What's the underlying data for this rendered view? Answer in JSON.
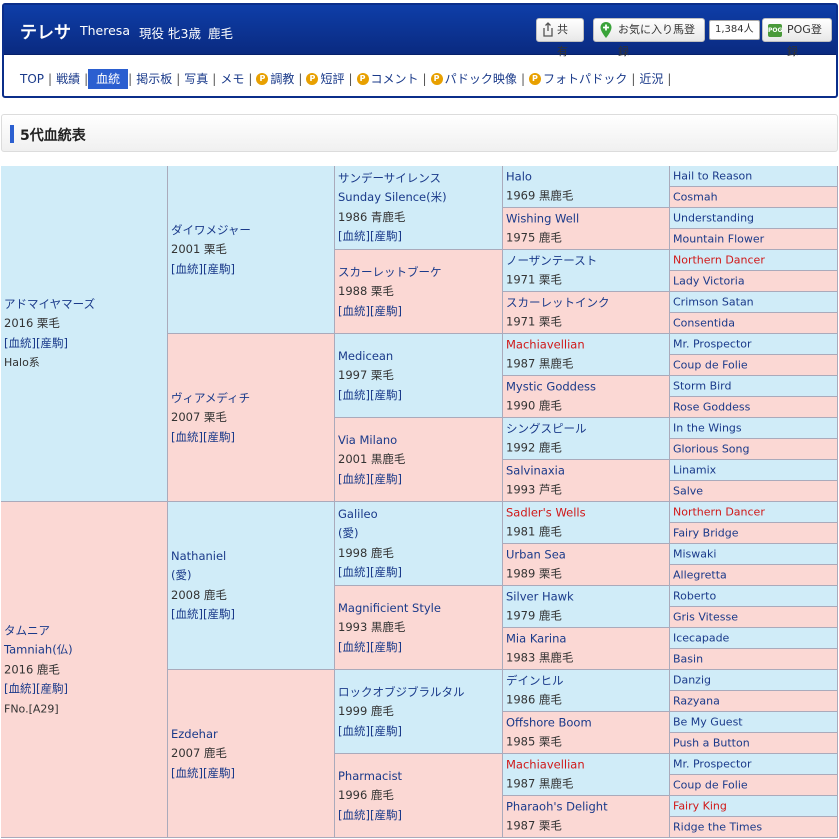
{
  "header": {
    "name": "テレサ",
    "name_en": "Theresa",
    "status": "現役",
    "sex_age": "牝3歳",
    "color": "鹿毛",
    "share_label": "共有",
    "fav_label": "お気に入り馬登録",
    "fav_count": "1,384人",
    "pog_icon_text": "POG",
    "pog_label": "POG登録"
  },
  "nav": [
    {
      "label": "TOP",
      "active": false,
      "coin": false
    },
    {
      "label": "戦績",
      "active": false,
      "coin": false
    },
    {
      "label": "血統",
      "active": true,
      "coin": false
    },
    {
      "label": "掲示板",
      "active": false,
      "coin": false
    },
    {
      "label": "写真",
      "active": false,
      "coin": false
    },
    {
      "label": "メモ",
      "active": false,
      "coin": false
    },
    {
      "label": "調教",
      "active": false,
      "coin": true
    },
    {
      "label": "短評",
      "active": false,
      "coin": true
    },
    {
      "label": "コメント",
      "active": false,
      "coin": true
    },
    {
      "label": "パドック映像",
      "active": false,
      "coin": true
    },
    {
      "label": "フォトパドック",
      "active": false,
      "coin": true
    },
    {
      "label": "近況",
      "active": false,
      "coin": false
    }
  ],
  "nav_coin_glyph": "P",
  "section_title": "5代血統表",
  "link_text": "[血統][産駒]",
  "pedigree": {
    "g1": [
      {
        "sex": "m",
        "name": [
          "アドマイヤマーズ"
        ],
        "year": "2016 栗毛",
        "link": true,
        "extra": "Halo系"
      },
      {
        "sex": "f",
        "name": [
          "タムニア",
          "Tamniah(仏)"
        ],
        "year": "2016 鹿毛",
        "link": true,
        "extra": "FNo.[A29]"
      }
    ],
    "g2": [
      {
        "sex": "m",
        "name": [
          "ダイワメジャー"
        ],
        "year": "2001 栗毛",
        "link": true
      },
      {
        "sex": "f",
        "name": [
          "ヴィアメディチ"
        ],
        "year": "2007 栗毛",
        "link": true
      },
      {
        "sex": "m",
        "name": [
          "Nathaniel",
          "(愛)"
        ],
        "year": "2008 鹿毛",
        "link": true
      },
      {
        "sex": "f",
        "name": [
          "Ezdehar"
        ],
        "year": "2007 鹿毛",
        "link": true
      }
    ],
    "g3": [
      {
        "sex": "m",
        "name": [
          "サンデーサイレンス",
          "Sunday Silence(米)"
        ],
        "year": "1986 青鹿毛",
        "link": true
      },
      {
        "sex": "f",
        "name": [
          "スカーレットブーケ"
        ],
        "year": "1988 栗毛",
        "link": true
      },
      {
        "sex": "m",
        "name": [
          "Medicean"
        ],
        "year": "1997 栗毛",
        "link": true
      },
      {
        "sex": "f",
        "name": [
          "Via Milano"
        ],
        "year": "2001 黒鹿毛",
        "link": true
      },
      {
        "sex": "m",
        "name": [
          "Galileo",
          "(愛)"
        ],
        "year": "1998 鹿毛",
        "link": true
      },
      {
        "sex": "f",
        "name": [
          "Magnificient Style"
        ],
        "year": "1993 黒鹿毛",
        "link": true
      },
      {
        "sex": "m",
        "name": [
          "ロックオブジブラルタル"
        ],
        "year": "1999 鹿毛",
        "link": true
      },
      {
        "sex": "f",
        "name": [
          "Pharmacist"
        ],
        "year": "1996 鹿毛",
        "link": true
      }
    ],
    "g4": [
      {
        "sex": "m",
        "name": "Halo",
        "year": "1969 黒鹿毛",
        "red": false
      },
      {
        "sex": "f",
        "name": "Wishing Well",
        "year": "1975 鹿毛",
        "red": false
      },
      {
        "sex": "m",
        "name": "ノーザンテースト",
        "year": "1971 栗毛",
        "red": false
      },
      {
        "sex": "f",
        "name": "スカーレットインク",
        "year": "1971 栗毛",
        "red": false
      },
      {
        "sex": "m",
        "name": "Machiavellian",
        "year": "1987 黒鹿毛",
        "red": true
      },
      {
        "sex": "f",
        "name": "Mystic Goddess",
        "year": "1990 鹿毛",
        "red": false
      },
      {
        "sex": "m",
        "name": "シングスピール",
        "year": "1992 鹿毛",
        "red": false
      },
      {
        "sex": "f",
        "name": "Salvinaxia",
        "year": "1993 芦毛",
        "red": false
      },
      {
        "sex": "m",
        "name": "Sadler's Wells",
        "year": "1981 鹿毛",
        "red": true
      },
      {
        "sex": "f",
        "name": "Urban Sea",
        "year": "1989 栗毛",
        "red": false
      },
      {
        "sex": "m",
        "name": "Silver Hawk",
        "year": "1979 鹿毛",
        "red": false
      },
      {
        "sex": "f",
        "name": "Mia Karina",
        "year": "1983 黒鹿毛",
        "red": false
      },
      {
        "sex": "m",
        "name": "デインヒル",
        "year": "1986 鹿毛",
        "red": false
      },
      {
        "sex": "f",
        "name": "Offshore Boom",
        "year": "1985 栗毛",
        "red": false
      },
      {
        "sex": "m",
        "name": "Machiavellian",
        "year": "1987 黒鹿毛",
        "red": true
      },
      {
        "sex": "f",
        "name": "Pharaoh's Delight",
        "year": "1987 栗毛",
        "red": false
      }
    ],
    "g5": [
      {
        "sex": "m",
        "name": "Hail to Reason",
        "red": false
      },
      {
        "sex": "f",
        "name": "Cosmah",
        "red": false
      },
      {
        "sex": "m",
        "name": "Understanding",
        "red": false
      },
      {
        "sex": "f",
        "name": "Mountain Flower",
        "red": false
      },
      {
        "sex": "m",
        "name": "Northern Dancer",
        "red": true
      },
      {
        "sex": "f",
        "name": "Lady Victoria",
        "red": false
      },
      {
        "sex": "m",
        "name": "Crimson Satan",
        "red": false
      },
      {
        "sex": "f",
        "name": "Consentida",
        "red": false
      },
      {
        "sex": "m",
        "name": "Mr. Prospector",
        "red": false
      },
      {
        "sex": "f",
        "name": "Coup de Folie",
        "red": false
      },
      {
        "sex": "m",
        "name": "Storm Bird",
        "red": false
      },
      {
        "sex": "f",
        "name": "Rose Goddess",
        "red": false
      },
      {
        "sex": "m",
        "name": "In the Wings",
        "red": false
      },
      {
        "sex": "f",
        "name": "Glorious Song",
        "red": false
      },
      {
        "sex": "m",
        "name": "Linamix",
        "red": false
      },
      {
        "sex": "f",
        "name": "Salve",
        "red": false
      },
      {
        "sex": "m",
        "name": "Northern Dancer",
        "red": true
      },
      {
        "sex": "f",
        "name": "Fairy Bridge",
        "red": false
      },
      {
        "sex": "m",
        "name": "Miswaki",
        "red": false
      },
      {
        "sex": "f",
        "name": "Allegretta",
        "red": false
      },
      {
        "sex": "m",
        "name": "Roberto",
        "red": false
      },
      {
        "sex": "f",
        "name": "Gris Vitesse",
        "red": false
      },
      {
        "sex": "m",
        "name": "Icecapade",
        "red": false
      },
      {
        "sex": "f",
        "name": "Basin",
        "red": false
      },
      {
        "sex": "m",
        "name": "Danzig",
        "red": false
      },
      {
        "sex": "f",
        "name": "Razyana",
        "red": false
      },
      {
        "sex": "m",
        "name": "Be My Guest",
        "red": false
      },
      {
        "sex": "f",
        "name": "Push a Button",
        "red": false
      },
      {
        "sex": "m",
        "name": "Mr. Prospector",
        "red": false
      },
      {
        "sex": "f",
        "name": "Coup de Folie",
        "red": false
      },
      {
        "sex": "m",
        "name": "Fairy King",
        "red": true
      },
      {
        "sex": "f",
        "name": "Ridge the Times",
        "red": false
      }
    ]
  }
}
